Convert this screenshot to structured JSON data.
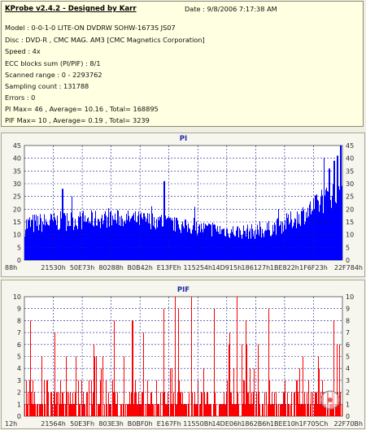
{
  "header": {
    "title": "KProbe v2.4.2 - Designed by Karr",
    "date": "Date : 9/8/2006 7:17:38 AM",
    "lines": [
      "Model : 0-0-1-0 LITE-ON DVDRW SOHW-1673S JS07",
      "Disc : DVD-R , CMC MAG. AM3 [CMC Magnetics Corporation]",
      "Speed : 4x",
      "ECC blocks sum (PI/PIF) : 8/1",
      "Scanned range : 0 - 2293762",
      "Sampling count : 131788",
      "Errors : 0",
      "PI Max= 46 , Average= 10.16 , Total= 168895",
      "PIF Max= 10 , Average= 0.19 , Total= 3239"
    ]
  },
  "colors": {
    "pi": "#0000ff",
    "pif": "#ff0000",
    "plot_bg": "#ffffff",
    "grid": "#1a1a8c"
  },
  "chart_data": [
    {
      "type": "bar",
      "title": "PI",
      "ylim": [
        0,
        45
      ],
      "y_ticks": [
        "0",
        "5",
        "10",
        "15",
        "20",
        "25",
        "30",
        "35",
        "40",
        "45"
      ],
      "x_tick_labels": [
        "88h",
        "21530h",
        "50E73h",
        "80288h",
        "B0B42h",
        "E13FEh",
        "115254h",
        "14D915h",
        "186127h",
        "1BE822h",
        "1F6F23h",
        "22F784h"
      ],
      "grid": true,
      "color": "#0000ff",
      "profile_x": [
        0,
        0.05,
        0.15,
        0.3,
        0.42,
        0.5,
        0.58,
        0.66,
        0.74,
        0.8,
        0.86,
        0.9,
        0.94,
        0.97,
        1.0
      ],
      "profile_base": [
        12,
        13,
        14,
        15,
        14,
        12,
        11,
        10,
        10,
        12,
        15,
        18,
        21,
        24,
        27
      ],
      "profile_spread": [
        9,
        8,
        8,
        7,
        7,
        6,
        6,
        6,
        6,
        7,
        8,
        9,
        10,
        11,
        12
      ],
      "peaks": [
        {
          "x": 0.995,
          "y": 46
        },
        {
          "x": 0.985,
          "y": 41
        },
        {
          "x": 0.975,
          "y": 39
        },
        {
          "x": 0.96,
          "y": 36
        },
        {
          "x": 0.44,
          "y": 31
        },
        {
          "x": 0.12,
          "y": 28
        }
      ]
    },
    {
      "type": "bar",
      "title": "PIF",
      "ylim": [
        0,
        10
      ],
      "y_ticks": [
        "0",
        "1",
        "2",
        "3",
        "4",
        "5",
        "6",
        "7",
        "8",
        "9",
        "10"
      ],
      "x_tick_labels": [
        "12h",
        "21564h",
        "50E3Fh",
        "803E3h",
        "B0BF0h",
        "E167Fh",
        "11550Bh",
        "14DE06h",
        "1862B6h",
        "1BEE10h",
        "1F705Ch",
        "22F70Bh"
      ],
      "grid": true,
      "color": "#ff0000",
      "base_max": 2,
      "spike_density": 0.15,
      "max_value": 10
    }
  ]
}
